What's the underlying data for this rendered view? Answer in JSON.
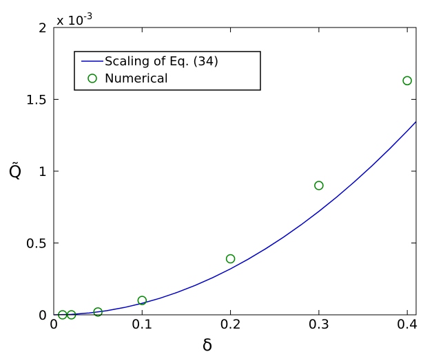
{
  "chart_data": {
    "type": "line",
    "xlabel": "δ",
    "ylabel": "Q̃",
    "xlim": [
      0,
      0.41
    ],
    "ylim": [
      0,
      2
    ],
    "y_multiplier_label": "x 10",
    "y_multiplier_exponent": "-3",
    "x_ticks": [
      0,
      0.1,
      0.2,
      0.3,
      0.4
    ],
    "x_tick_labels": [
      "0",
      "0.1",
      "0.2",
      "0.3",
      "0.4"
    ],
    "y_ticks": [
      0,
      0.5,
      1,
      1.5,
      2
    ],
    "y_tick_labels": [
      "0",
      "0.5",
      "1",
      "1.5",
      "2"
    ],
    "grid": false,
    "legend_position": "top-left",
    "series": [
      {
        "name": "Scaling of Eq. (34)",
        "kind": "line",
        "color": "#0000cc",
        "x": [
          0,
          0.02,
          0.04,
          0.06,
          0.08,
          0.1,
          0.12,
          0.14,
          0.16,
          0.18,
          0.2,
          0.22,
          0.24,
          0.26,
          0.28,
          0.3,
          0.32,
          0.34,
          0.36,
          0.38,
          0.4,
          0.41
        ],
        "y": [
          0,
          0.0032,
          0.0128,
          0.0288,
          0.0512,
          0.08,
          0.1152,
          0.1568,
          0.2048,
          0.2592,
          0.32,
          0.3872,
          0.4608,
          0.5408,
          0.6272,
          0.72,
          0.8192,
          0.9248,
          1.0368,
          1.1552,
          1.28,
          1.3448
        ]
      },
      {
        "name": "Numerical",
        "kind": "scatter",
        "color": "#008800",
        "x": [
          0.01,
          0.02,
          0.05,
          0.1,
          0.2,
          0.3,
          0.4
        ],
        "y": [
          0.0,
          0.0,
          0.02,
          0.1,
          0.39,
          0.9,
          1.63
        ]
      }
    ]
  }
}
